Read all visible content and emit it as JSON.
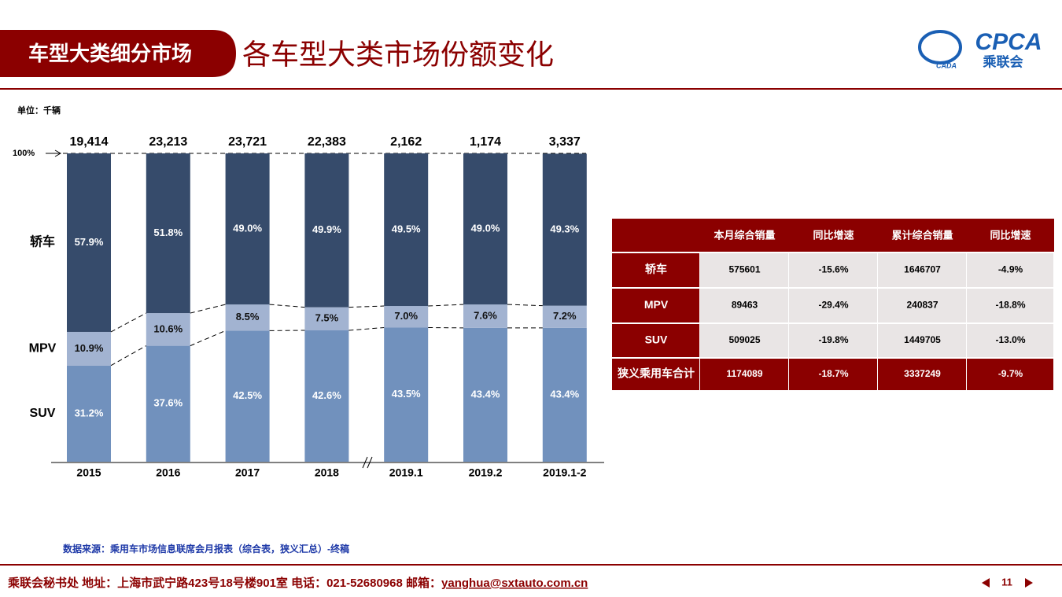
{
  "header": {
    "section": "车型大类细分市场",
    "title": "各车型大类市场份额变化",
    "logo_text": "CPCA",
    "logo_sub": "乘联会",
    "logo_small": "CADA"
  },
  "chart_data": {
    "type": "bar",
    "stacked": true,
    "unit": "单位：千辆",
    "top_label": "100%",
    "categories": [
      "2015",
      "2016",
      "2017",
      "2018",
      "2019.1",
      "2019.2",
      "2019.1-2"
    ],
    "totals": {
      "values": [
        19414,
        23213,
        23721,
        22383,
        2162,
        1174,
        3337
      ],
      "value_labels": [
        "19,414",
        "23,213",
        "23,721",
        "22,383",
        "2,162",
        "1,174",
        "3,337"
      ]
    },
    "ylim": [
      0,
      100
    ],
    "series": [
      {
        "name": "SUV",
        "color": "#7191bd",
        "label_color": "#ffffff",
        "values": [
          31.2,
          37.6,
          42.5,
          42.6,
          43.5,
          43.4,
          43.4
        ],
        "value_labels": [
          "31.2%",
          "37.6%",
          "42.5%",
          "42.6%",
          "43.5%",
          "43.4%",
          "43.4%"
        ]
      },
      {
        "name": "MPV",
        "color": "#a2b3d1",
        "label_color": "#111111",
        "values": [
          10.9,
          10.6,
          8.5,
          7.5,
          7.0,
          7.6,
          7.2
        ],
        "value_labels": [
          "10.9%",
          "10.6%",
          "8.5%",
          "7.5%",
          "7.0%",
          "7.6%",
          "7.2%"
        ]
      },
      {
        "name": "轿车",
        "color": "#364b6b",
        "label_color": "#ffffff",
        "values": [
          57.9,
          51.8,
          49.0,
          49.9,
          49.5,
          49.0,
          49.3
        ],
        "value_labels": [
          "57.9%",
          "51.8%",
          "49.0%",
          "49.9%",
          "49.5%",
          "49.0%",
          "49.3%"
        ]
      }
    ]
  },
  "table": {
    "columns": [
      "本月综合销量",
      "同比增速",
      "累计综合销量",
      "同比增速"
    ],
    "rows": [
      {
        "label": "轿车",
        "cells": [
          "575601",
          "-15.6%",
          "1646707",
          "-4.9%"
        ]
      },
      {
        "label": "MPV",
        "cells": [
          "89463",
          "-29.4%",
          "240837",
          "-18.8%"
        ]
      },
      {
        "label": "SUV",
        "cells": [
          "509025",
          "-19.8%",
          "1449705",
          "-13.0%"
        ]
      },
      {
        "label": "狭义乘用车合计",
        "cells": [
          "1174089",
          "-18.7%",
          "3337249",
          "-9.7%"
        ]
      }
    ]
  },
  "source": "数据来源：乘用车市场信息联席会月报表（综合表，狭义汇总）-终稿",
  "footer": {
    "contact": "乘联会秘书处   地址：上海市武宁路423号18号楼901室   电话：021-52680968   邮箱：",
    "email": "yanghua@sxtauto.com.cn",
    "page": "11"
  }
}
